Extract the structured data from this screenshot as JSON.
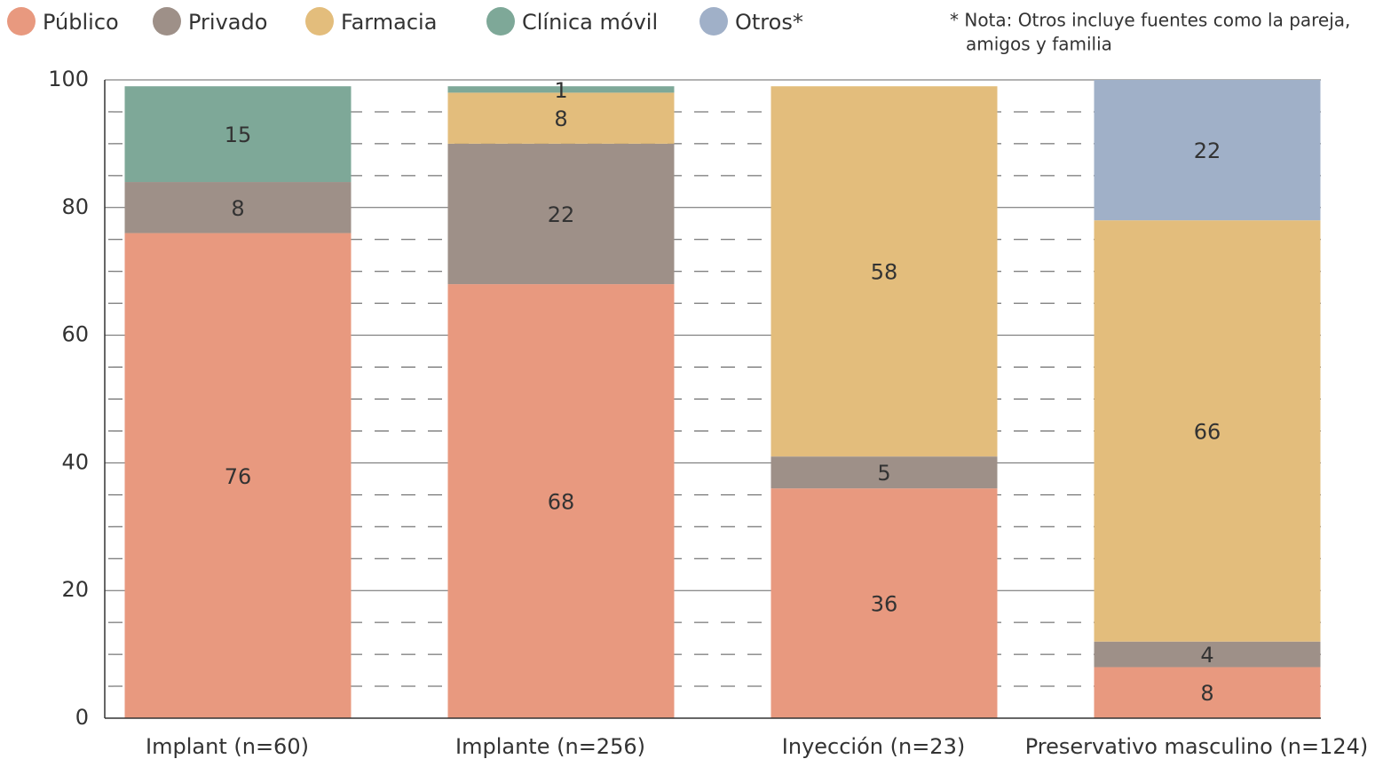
{
  "chart_data": {
    "type": "stacked_bar",
    "note": [
      "* Nota: Otros incluye fuentes como la pareja,",
      "amigos y familia"
    ],
    "categories": [
      "Implant (n=60)",
      "Implante (n=256)",
      "Inyección (n=23)",
      "Preservativo masculino (n=124)"
    ],
    "series": [
      {
        "name": "Público",
        "color": "#e8997f",
        "values": [
          76,
          68,
          36,
          8
        ]
      },
      {
        "name": "Privado",
        "color": "#9e9088",
        "values": [
          8,
          22,
          5,
          4
        ]
      },
      {
        "name": "Farmacia",
        "color": "#e3bd7c",
        "values": [
          null,
          8,
          58,
          66
        ]
      },
      {
        "name": "Clínica móvil",
        "color": "#7ea898",
        "values": [
          15,
          1,
          null,
          null
        ]
      },
      {
        "name": "Otros*",
        "color": "#a0b0c8",
        "values": [
          null,
          null,
          null,
          22
        ]
      }
    ],
    "ylim": [
      0,
      100
    ],
    "yticks": [
      0,
      20,
      40,
      60,
      80,
      100
    ],
    "minor_yticks": [
      5,
      10,
      15,
      25,
      30,
      35,
      45,
      50,
      55,
      65,
      70,
      75,
      85,
      90,
      95
    ],
    "grid": true
  }
}
